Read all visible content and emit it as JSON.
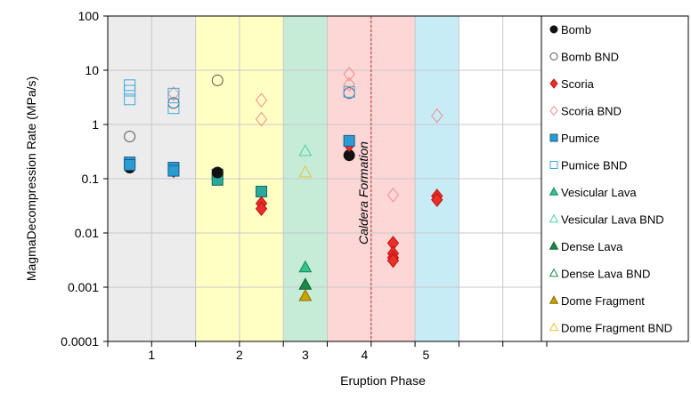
{
  "chart_data": {
    "type": "scatter",
    "title": "",
    "xlabel": "Eruption Phase",
    "ylabel": "MagmaDecompression Rate (MPa/s)",
    "y_scale": "log",
    "ylim": [
      0.0001,
      100
    ],
    "y_ticks": [
      "0.0001",
      "0.001",
      "0.01",
      "0.1",
      "1",
      "10",
      "100"
    ],
    "xlim": [
      0,
      10
    ],
    "x_tick_labels": [
      {
        "x": 1,
        "label": "1"
      },
      {
        "x": 3,
        "label": "2"
      },
      {
        "x": 4.5,
        "label": "3"
      },
      {
        "x": 5.85,
        "label": "4"
      },
      {
        "x": 7.25,
        "label": "5"
      }
    ],
    "phase_bands": [
      {
        "from": 0,
        "to": 2,
        "color": "#ececec"
      },
      {
        "from": 2,
        "to": 4,
        "color": "#ffffc4"
      },
      {
        "from": 4,
        "to": 5,
        "color": "#c6ebd6"
      },
      {
        "from": 5,
        "to": 7,
        "color": "#fdd6d6"
      },
      {
        "from": 7,
        "to": 8,
        "color": "#c8ecf6"
      }
    ],
    "annotation": {
      "text": "Caldera Formation",
      "x": 6
    },
    "legend_position": "right",
    "grid": true,
    "series": [
      {
        "name": "Bomb",
        "marker": "circle",
        "filled": true,
        "color": "#111111",
        "stroke": "#111111",
        "points": [
          {
            "x": 0.5,
            "y": 0.16
          },
          {
            "x": 1.5,
            "y": 0.14
          },
          {
            "x": 2.5,
            "y": 0.13
          },
          {
            "x": 5.5,
            "y": 0.27
          }
        ]
      },
      {
        "name": "Bomb BND",
        "marker": "circle",
        "filled": false,
        "color": "#555555",
        "stroke": "#555555",
        "points": [
          {
            "x": 0.5,
            "y": 0.6
          },
          {
            "x": 1.5,
            "y": 2.5
          },
          {
            "x": 2.5,
            "y": 6.5
          },
          {
            "x": 5.5,
            "y": 3.8
          }
        ]
      },
      {
        "name": "Scoria",
        "marker": "diamond",
        "filled": true,
        "color": "#e8302a",
        "stroke": "#c01010",
        "points": [
          {
            "x": 1.5,
            "y": 0.14
          },
          {
            "x": 3.5,
            "y": 0.035
          },
          {
            "x": 3.5,
            "y": 0.028
          },
          {
            "x": 5.5,
            "y": 0.42
          },
          {
            "x": 6.5,
            "y": 0.0065
          },
          {
            "x": 6.5,
            "y": 0.0042
          },
          {
            "x": 6.5,
            "y": 0.0035
          },
          {
            "x": 6.5,
            "y": 0.0031
          },
          {
            "x": 7.5,
            "y": 0.048
          },
          {
            "x": 7.5,
            "y": 0.041
          }
        ]
      },
      {
        "name": "Scoria BND",
        "marker": "diamond",
        "filled": false,
        "color": "#ef8e8e",
        "stroke": "#ef8e8e",
        "points": [
          {
            "x": 1.5,
            "y": 3.7
          },
          {
            "x": 3.5,
            "y": 2.8
          },
          {
            "x": 3.5,
            "y": 1.25
          },
          {
            "x": 5.5,
            "y": 8.5
          },
          {
            "x": 5.5,
            "y": 5.5
          },
          {
            "x": 6.5,
            "y": 0.05
          },
          {
            "x": 7.5,
            "y": 1.45
          }
        ]
      },
      {
        "name": "Pumice",
        "marker": "square",
        "filled": true,
        "color": "#2a9bd3",
        "stroke": "#1a5f8a",
        "points": [
          {
            "x": 0.5,
            "y": 0.2
          },
          {
            "x": 0.5,
            "y": 0.18
          },
          {
            "x": 1.5,
            "y": 0.16
          },
          {
            "x": 1.5,
            "y": 0.14
          },
          {
            "x": 5.5,
            "y": 0.5
          }
        ]
      },
      {
        "name": "Pumice BND",
        "marker": "square",
        "filled": false,
        "color": "#3fa9e0",
        "stroke": "#3fa9e0",
        "points": [
          {
            "x": 0.5,
            "y": 5.3
          },
          {
            "x": 0.5,
            "y": 4.2
          },
          {
            "x": 0.5,
            "y": 2.9
          },
          {
            "x": 1.5,
            "y": 3.7
          },
          {
            "x": 1.5,
            "y": 2.0
          },
          {
            "x": 5.5,
            "y": 4.0
          }
        ]
      },
      {
        "name": "Vesicular Lava",
        "marker": "triangle",
        "filled": true,
        "color": "#2ec48a",
        "stroke": "#158a55",
        "points": [
          {
            "x": 4.5,
            "y": 0.0023
          }
        ]
      },
      {
        "name": "Vesicular Lava BND",
        "marker": "triangle",
        "filled": false,
        "color": "#48d6a0",
        "stroke": "#48d6a0",
        "points": [
          {
            "x": 4.5,
            "y": 0.32
          }
        ]
      },
      {
        "name": "Dense Lava",
        "marker": "triangle",
        "filled": true,
        "color": "#1a8a4a",
        "stroke": "#0e5c30",
        "points": [
          {
            "x": 4.5,
            "y": 0.0011
          }
        ]
      },
      {
        "name": "Dense Lava BND",
        "marker": "triangle",
        "filled": false,
        "color": "#1a8a4a",
        "stroke": "#1a8a4a",
        "points": []
      },
      {
        "name": "Dome Fragment",
        "marker": "triangle",
        "filled": true,
        "color": "#c9a300",
        "stroke": "#8a6d00",
        "points": [
          {
            "x": 4.5,
            "y": 0.00068
          }
        ]
      },
      {
        "name": "Dome Fragment BND",
        "marker": "triangle",
        "filled": false,
        "color": "#e8c63a",
        "stroke": "#e8c63a",
        "points": [
          {
            "x": 4.5,
            "y": 0.13
          }
        ]
      }
    ]
  },
  "extra_points": [
    {
      "x": 2.5,
      "y": 0.12,
      "marker": "square",
      "color": "#2aa89a",
      "stroke": "#146a60"
    },
    {
      "x": 2.5,
      "y": 0.095,
      "marker": "square",
      "color": "#2aa89a",
      "stroke": "#146a60"
    },
    {
      "x": 3.5,
      "y": 0.058,
      "marker": "square",
      "color": "#2aa89a",
      "stroke": "#146a60"
    }
  ]
}
